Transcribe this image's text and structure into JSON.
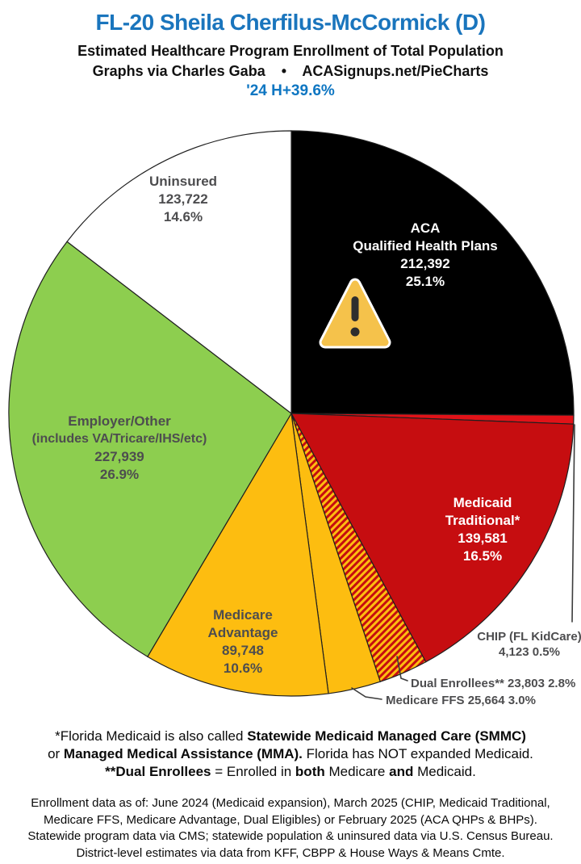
{
  "header": {
    "title": "FL-20 Sheila Cherfilus-McCormick (D)",
    "subtitle1": "Estimated Healthcare Program Enrollment of Total Population",
    "subtitle2": "Graphs via Charles Gaba    •    ACASignups.net/PieCharts",
    "stat": "'24 H+39.6%"
  },
  "colors": {
    "title_blue": "#1a75bd",
    "stat_blue": "#0e76c2",
    "label_gray": "#4d4d4f",
    "slice_outline": "#1f1f1f",
    "warning_triangle_fill": "#f5c24b",
    "warning_triangle_border": "#ffffff",
    "warning_glyph": "#2e2e2e"
  },
  "chart_data": {
    "type": "pie",
    "title": "Estimated Healthcare Program Enrollment of Total Population",
    "district": "FL-20",
    "representative": "Sheila Cherfilus-McCormick (D)",
    "start": "12 o'clock, clockwise",
    "legend_position": "labels on slices",
    "slices": [
      {
        "key": "aca",
        "name": "ACA Qualified Health Plans",
        "enrollment": 212392,
        "enrollment_text": "212,392",
        "pct": 25.1,
        "color": "#000000",
        "hatch": false
      },
      {
        "key": "chip",
        "name": "CHIP (FL KidCare)",
        "enrollment": 4123,
        "enrollment_text": "4,123",
        "pct": 0.5,
        "color": "#e11218",
        "hatch": false
      },
      {
        "key": "medicaid",
        "name": "Medicaid Traditional*",
        "enrollment": 139581,
        "enrollment_text": "139,581",
        "pct": 16.5,
        "color": "#c60d10",
        "hatch": false
      },
      {
        "key": "dual",
        "name": "Dual Enrollees**",
        "enrollment": 23803,
        "enrollment_text": "23,803",
        "pct": 2.8,
        "color": "hatch red/yellow",
        "hatch": true
      },
      {
        "key": "ffs",
        "name": "Medicare FFS",
        "enrollment": 25664,
        "enrollment_text": "25,664",
        "pct": 3.0,
        "color": "#fdbd10",
        "hatch": false
      },
      {
        "key": "advantage",
        "name": "Medicare Advantage",
        "enrollment": 89748,
        "enrollment_text": "89,748",
        "pct": 10.6,
        "color": "#fdbd10",
        "hatch": false
      },
      {
        "key": "employer",
        "name": "Employer/Other (includes VA/Tricare/IHS/etc)",
        "enrollment": 227939,
        "enrollment_text": "227,939",
        "pct": 26.9,
        "color": "#8dce4f",
        "hatch": false
      },
      {
        "key": "uninsured",
        "name": "Uninsured",
        "enrollment": 123722,
        "enrollment_text": "123,722",
        "pct": 14.6,
        "color": "#ffffff",
        "hatch": false
      }
    ]
  },
  "slice_labels": {
    "aca": [
      "ACA",
      "Qualified Health Plans",
      "212,392",
      "25.1%"
    ],
    "medicaid": [
      "Medicaid",
      "Traditional*",
      "139,581",
      "16.5%"
    ],
    "employer": [
      "Employer/Other",
      "(includes VA/Tricare/IHS/etc)",
      "227,939",
      "26.9%"
    ],
    "advantage": [
      "Medicare",
      "Advantage",
      "89,748",
      "10.6%"
    ],
    "uninsured": [
      "Uninsured",
      "123,722",
      "14.6%"
    ],
    "chip": [
      "CHIP (FL KidCare)",
      "4,123 0.5%"
    ],
    "dual": "Dual Enrollees** 23,803 2.8%",
    "ffs": "Medicare FFS 25,664 3.0%"
  },
  "footnotes": {
    "l1a": "*Florida Medicaid is also called ",
    "l1b": "Statewide Medicaid Managed Care (SMMC)",
    "l2a": "or ",
    "l2b": "Managed Medical Assistance (MMA).",
    "l2c": " Florida has NOT expanded Medicaid.",
    "l3a": "**Dual Enrollees",
    "l3b": " = Enrolled in ",
    "l3c": "both",
    "l3d": " Medicare ",
    "l3e": "and",
    "l3f": " Medicaid."
  },
  "footer": {
    "lines": [
      "Enrollment data as of: June 2024 (Medicaid expansion), March 2025 (CHIP, Medicaid Traditional,",
      "Medicare FFS, Medicare Advantage, Dual Eligibles) or February 2025 (ACA QHPs & BHPs).",
      "Statewide program data via CMS; statewide population & uninsured data via U.S. Census Bureau.",
      "District-level estimates via data from KFF, CBPP & House Ways & Means Cmte."
    ]
  }
}
